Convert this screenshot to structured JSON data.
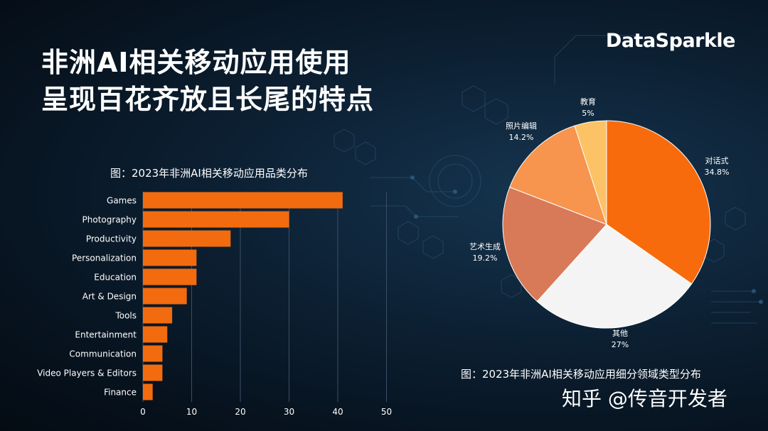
{
  "title": {
    "line1": "非洲AI相关移动应用使用",
    "line2": "呈现百花齐放且长尾的特点"
  },
  "brand": "DataSparkle",
  "bar_caption": "图：2023年非洲AI相关移动应用品类分布",
  "pie_caption": "图：2023年非洲AI相关移动应用细分领域类型分布",
  "watermark": "知乎 @传音开发者",
  "colors": {
    "bar": "#f26b0f",
    "background": "#0b1b2b"
  },
  "chart_data": [
    {
      "type": "bar",
      "orientation": "horizontal",
      "categories": [
        "Games",
        "Photography",
        "Productivity",
        "Personalization",
        "Education",
        "Art & Design",
        "Tools",
        "Entertainment",
        "Communication",
        "Video Players & Editors",
        "Finance"
      ],
      "values": [
        41,
        30,
        18,
        11,
        11,
        9,
        6,
        5,
        4,
        4,
        2
      ],
      "xticks": [
        0,
        10,
        20,
        30,
        40,
        50
      ],
      "xlim": [
        0,
        50
      ],
      "grid": "vertical"
    },
    {
      "type": "pie",
      "slices": [
        {
          "label": "对话式",
          "value": 34.8,
          "display": "34.8%",
          "color": "#f76b0c"
        },
        {
          "label": "其他",
          "value": 27,
          "display": "27%",
          "color": "#f4f4f4"
        },
        {
          "label": "艺术生成",
          "value": 19.2,
          "display": "19.2%",
          "color": "#d87a58"
        },
        {
          "label": "照片编辑",
          "value": 14.2,
          "display": "14.2%",
          "color": "#f7944d"
        },
        {
          "label": "教育",
          "value": 5,
          "display": "5%",
          "color": "#fcc266"
        }
      ]
    }
  ]
}
